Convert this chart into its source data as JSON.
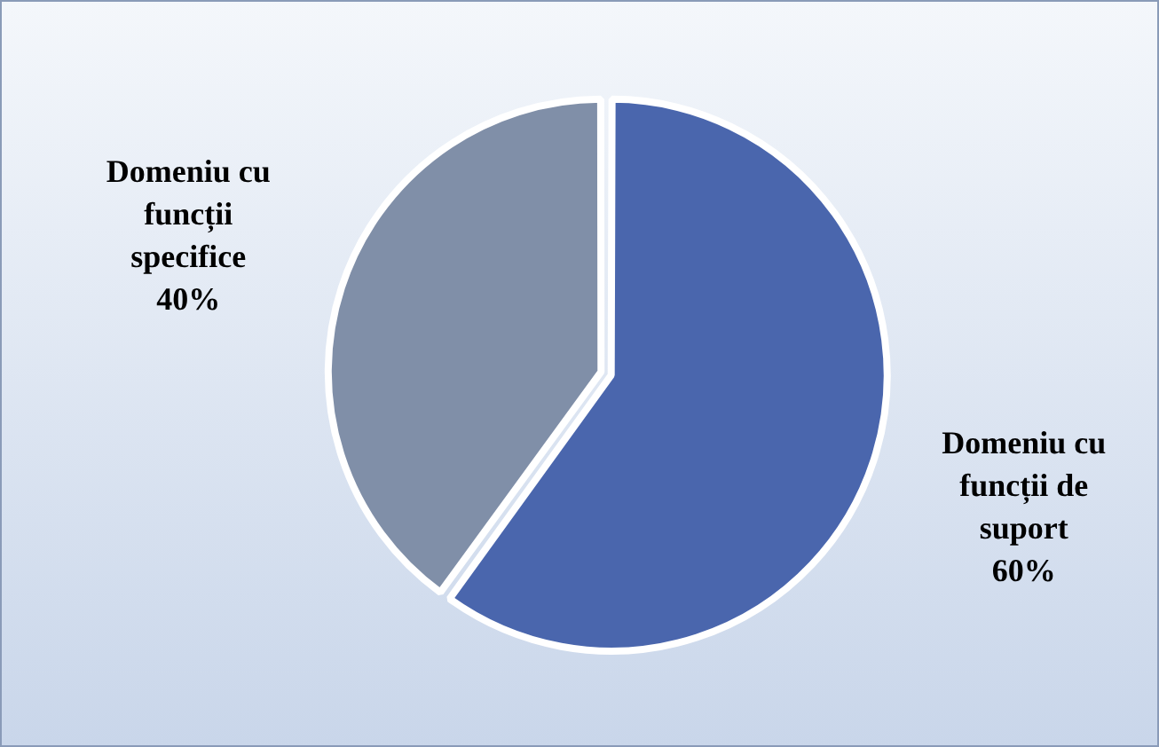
{
  "chart_data": {
    "type": "pie",
    "categories": [
      "Domeniu cu funcții de suport",
      "Domeniu cu funcții specifice"
    ],
    "values": [
      60,
      40
    ],
    "colors": [
      "#4a66ad",
      "#808fa8"
    ],
    "value_labels": [
      "60%",
      "40%"
    ]
  }
}
